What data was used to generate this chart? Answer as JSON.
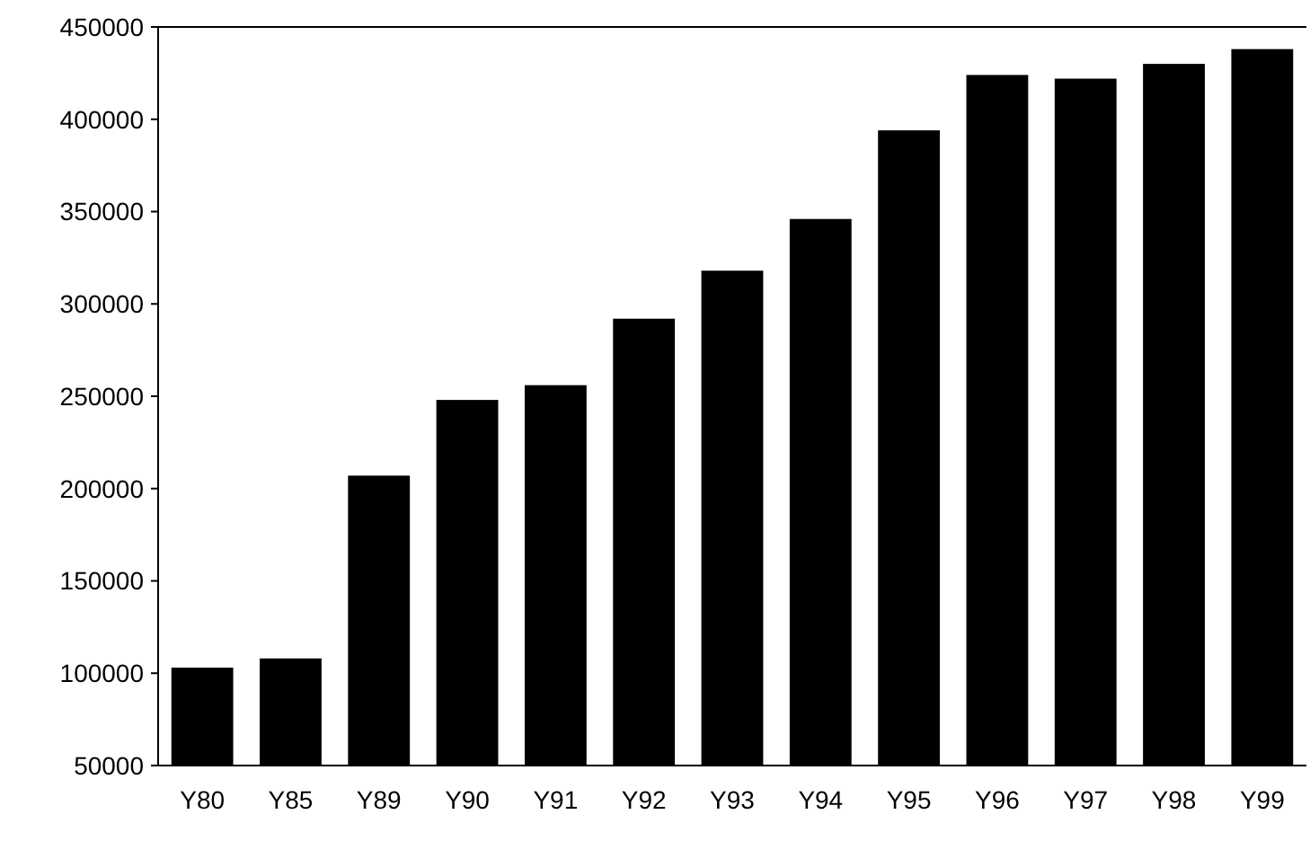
{
  "chart_data": {
    "type": "bar",
    "categories": [
      "Y80",
      "Y85",
      "Y89",
      "Y90",
      "Y91",
      "Y92",
      "Y93",
      "Y94",
      "Y95",
      "Y96",
      "Y97",
      "Y98",
      "Y99"
    ],
    "values": [
      103000,
      108000,
      207000,
      248000,
      256000,
      292000,
      318000,
      346000,
      394000,
      424000,
      422000,
      430000,
      438000
    ],
    "color": "#000000",
    "ylim": [
      50000,
      450000
    ],
    "yticks": [
      50000,
      100000,
      150000,
      200000,
      250000,
      300000,
      350000,
      400000,
      450000
    ],
    "grid": false
  }
}
